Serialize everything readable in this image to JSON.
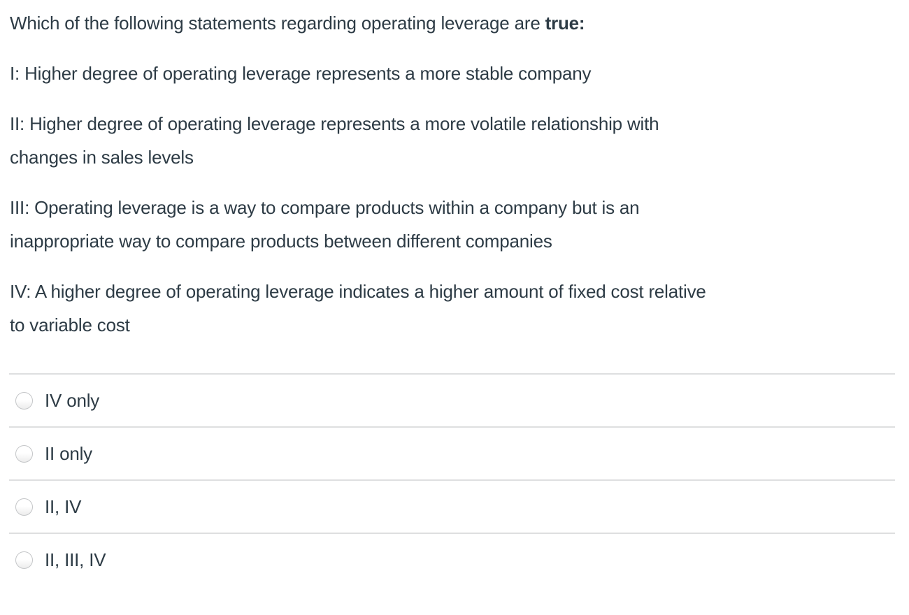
{
  "question": {
    "intro_text": "Which of the following statements regarding operating leverage are ",
    "intro_bold": "true:",
    "statements": [
      "I: Higher degree of operating leverage represents a more stable company",
      "II: Higher degree of operating leverage represents a more volatile relationship with\nchanges in sales levels",
      "III: Operating leverage is a way to compare products within a company but is an\ninappropriate way to compare products between different companies",
      "IV: A higher degree of operating leverage indicates a higher amount of fixed cost relative\nto variable cost"
    ]
  },
  "answers": {
    "options": [
      {
        "label": "IV only",
        "selected": false
      },
      {
        "label": "II only",
        "selected": false
      },
      {
        "label": "II, IV",
        "selected": false
      },
      {
        "label": "II, III, IV",
        "selected": false
      }
    ]
  },
  "colors": {
    "text": "#2d3b45",
    "divider": "#dedfe0",
    "radio_border": "#c4c6c8"
  }
}
